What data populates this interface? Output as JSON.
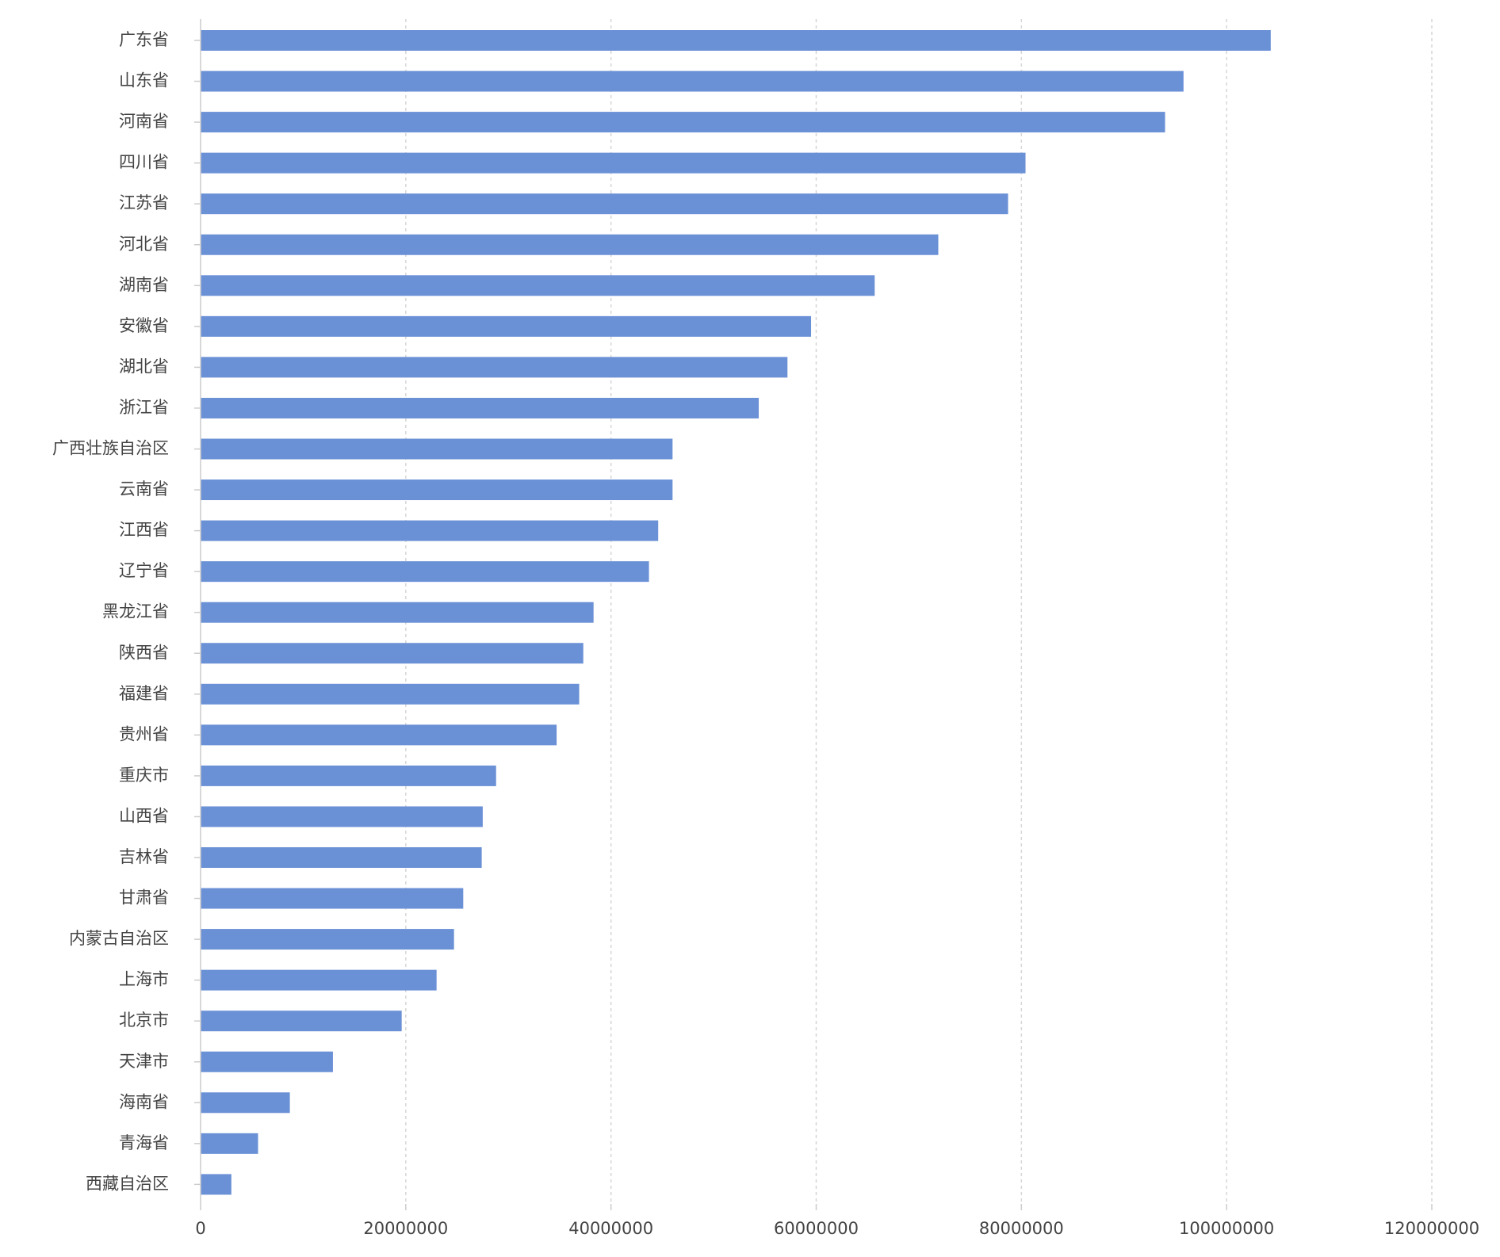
{
  "chart_data": {
    "type": "bar",
    "orientation": "horizontal",
    "title": "",
    "xlabel": "",
    "ylabel": "",
    "xlim": [
      0,
      120000000
    ],
    "x_ticks": [
      0,
      20000000,
      40000000,
      60000000,
      80000000,
      100000000,
      120000000
    ],
    "x_tick_labels": [
      "0",
      "20000000",
      "40000000",
      "60000000",
      "80000000",
      "100000000",
      "120000000"
    ],
    "grid": "vertical dashed",
    "bar_color": "#6a90d6",
    "grid_color": "#d6d6d6",
    "axis_color": "#cccccc",
    "label_color": "#444444",
    "categories": [
      "广东省",
      "山东省",
      "河南省",
      "四川省",
      "江苏省",
      "河北省",
      "湖南省",
      "安徽省",
      "湖北省",
      "浙江省",
      "广西壮族自治区",
      "云南省",
      "江西省",
      "辽宁省",
      "黑龙江省",
      "陕西省",
      "福建省",
      "贵州省",
      "重庆市",
      "山西省",
      "吉林省",
      "甘肃省",
      "内蒙古自治区",
      "上海市",
      "北京市",
      "天津市",
      "海南省",
      "青海省",
      "西藏自治区"
    ],
    "values": [
      104300000,
      95800000,
      94000000,
      80400000,
      78700000,
      71900000,
      65700000,
      59500000,
      57200000,
      54400000,
      46000000,
      46000000,
      44600000,
      43700000,
      38300000,
      37300000,
      36900000,
      34700000,
      28800000,
      27500000,
      27400000,
      25600000,
      24700000,
      23000000,
      19600000,
      12900000,
      8700000,
      5600000,
      3000000
    ]
  }
}
